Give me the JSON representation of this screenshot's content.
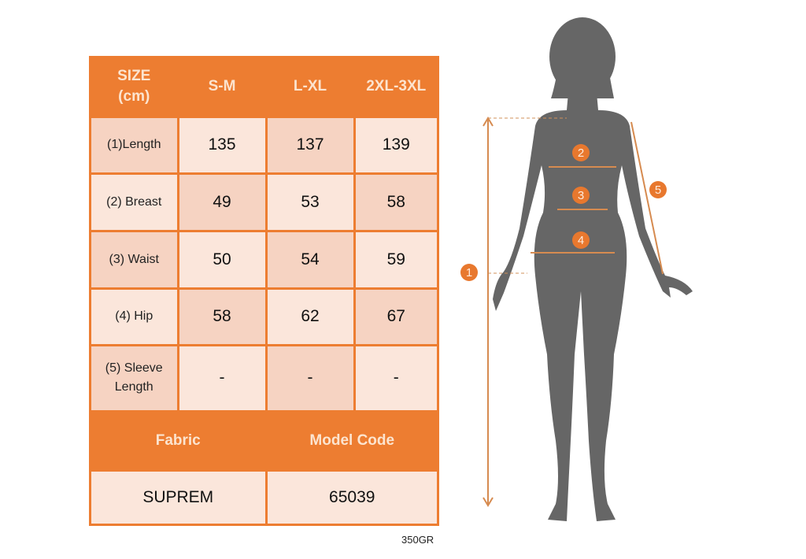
{
  "table": {
    "header": [
      "SIZE\n(cm)",
      "S-M",
      "L-XL",
      "2XL-3XL"
    ],
    "rows": [
      {
        "label": "(1)Length",
        "values": [
          "135",
          "137",
          "139"
        ]
      },
      {
        "label": "(2) Breast",
        "values": [
          "49",
          "53",
          "58"
        ]
      },
      {
        "label": "(3) Waist",
        "values": [
          "50",
          "54",
          "59"
        ]
      },
      {
        "label": "(4) Hip",
        "values": [
          "58",
          "62",
          "67"
        ]
      },
      {
        "label": "(5) Sleeve\nLength",
        "values": [
          "-",
          "-",
          "-"
        ]
      }
    ],
    "footer_headers": [
      "Fabric",
      "Model Code"
    ],
    "footer_values": [
      "SUPREM",
      "65039"
    ]
  },
  "note": "350GR",
  "figure": {
    "markers": [
      "1",
      "2",
      "3",
      "4",
      "5"
    ]
  },
  "colors": {
    "accent": "#ED7D31",
    "cell_dark": "#F6D3C2",
    "cell_light": "#FBE6DB",
    "silhouette": "#666666"
  }
}
